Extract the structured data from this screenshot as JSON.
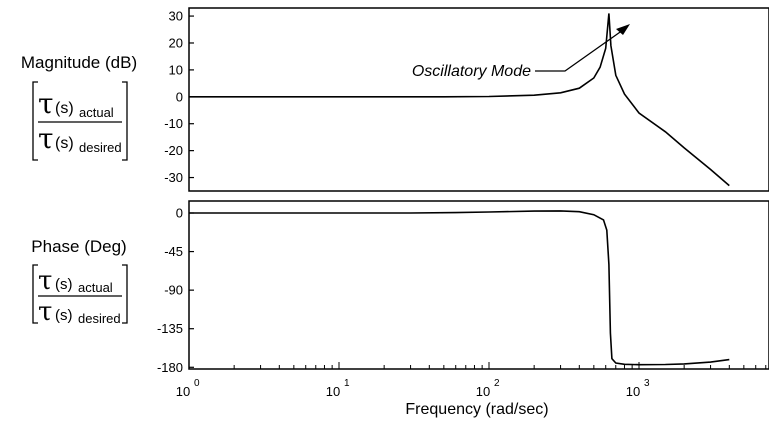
{
  "chart_data": [
    {
      "type": "line",
      "panel": "magnitude",
      "ylabel": "Magnitude (dB)",
      "ylabel_fraction": {
        "tau": "τ",
        "numerator_arg": "(s)",
        "numerator_sub": "actual",
        "denominator_arg": "(s)",
        "denominator_sub": "desired"
      },
      "x_scale": "log",
      "xlim": [
        1,
        4000
      ],
      "ylim": [
        -35,
        33
      ],
      "yticks": [
        30,
        20,
        10,
        0,
        -10,
        -20,
        -30
      ],
      "ytick_labels": [
        "30",
        "20",
        "10",
        "0",
        "-10",
        "-20",
        "-30"
      ],
      "annotation": "Oscillatory Mode",
      "series": [
        {
          "x": [
            1,
            10,
            50,
            100,
            200,
            300,
            400,
            500,
            550,
            600,
            630,
            650,
            700,
            800,
            1000,
            1500,
            2000,
            3000,
            4000
          ],
          "y": [
            0,
            0,
            0,
            0.1,
            0.6,
            1.5,
            3.2,
            7,
            11,
            18,
            31,
            19,
            8,
            1,
            -6,
            -13,
            -19,
            -27,
            -33
          ]
        }
      ]
    },
    {
      "type": "line",
      "panel": "phase",
      "ylabel": "Phase (Deg)",
      "ylabel_fraction": {
        "tau": "τ",
        "numerator_arg": "(s)",
        "numerator_sub": "actual",
        "denominator_arg": "(s)",
        "denominator_sub": "desired"
      },
      "x_scale": "log",
      "xlim": [
        1,
        4000
      ],
      "ylim": [
        -182,
        14
      ],
      "yticks": [
        0,
        -45,
        -90,
        -135,
        -180
      ],
      "ytick_labels": [
        "0",
        "-45",
        "-90",
        "-135",
        "-180"
      ],
      "xticks": [
        1,
        10,
        100,
        1000
      ],
      "xtick_base": "10",
      "xtick_exponents": [
        "0",
        "1",
        "2",
        "3"
      ],
      "xlabel": "Frequency  (rad/sec)",
      "series": [
        {
          "x": [
            1,
            10,
            30,
            60,
            100,
            200,
            300,
            400,
            500,
            580,
            610,
            630,
            645,
            660,
            700,
            800,
            1000,
            1500,
            2000,
            3000,
            4000
          ],
          "y": [
            0,
            0,
            0,
            0.5,
            1.2,
            2.2,
            2.4,
            1.5,
            -2,
            -8,
            -20,
            -60,
            -140,
            -170,
            -175,
            -176.5,
            -177,
            -176.8,
            -176,
            -174,
            -171
          ]
        }
      ]
    }
  ]
}
